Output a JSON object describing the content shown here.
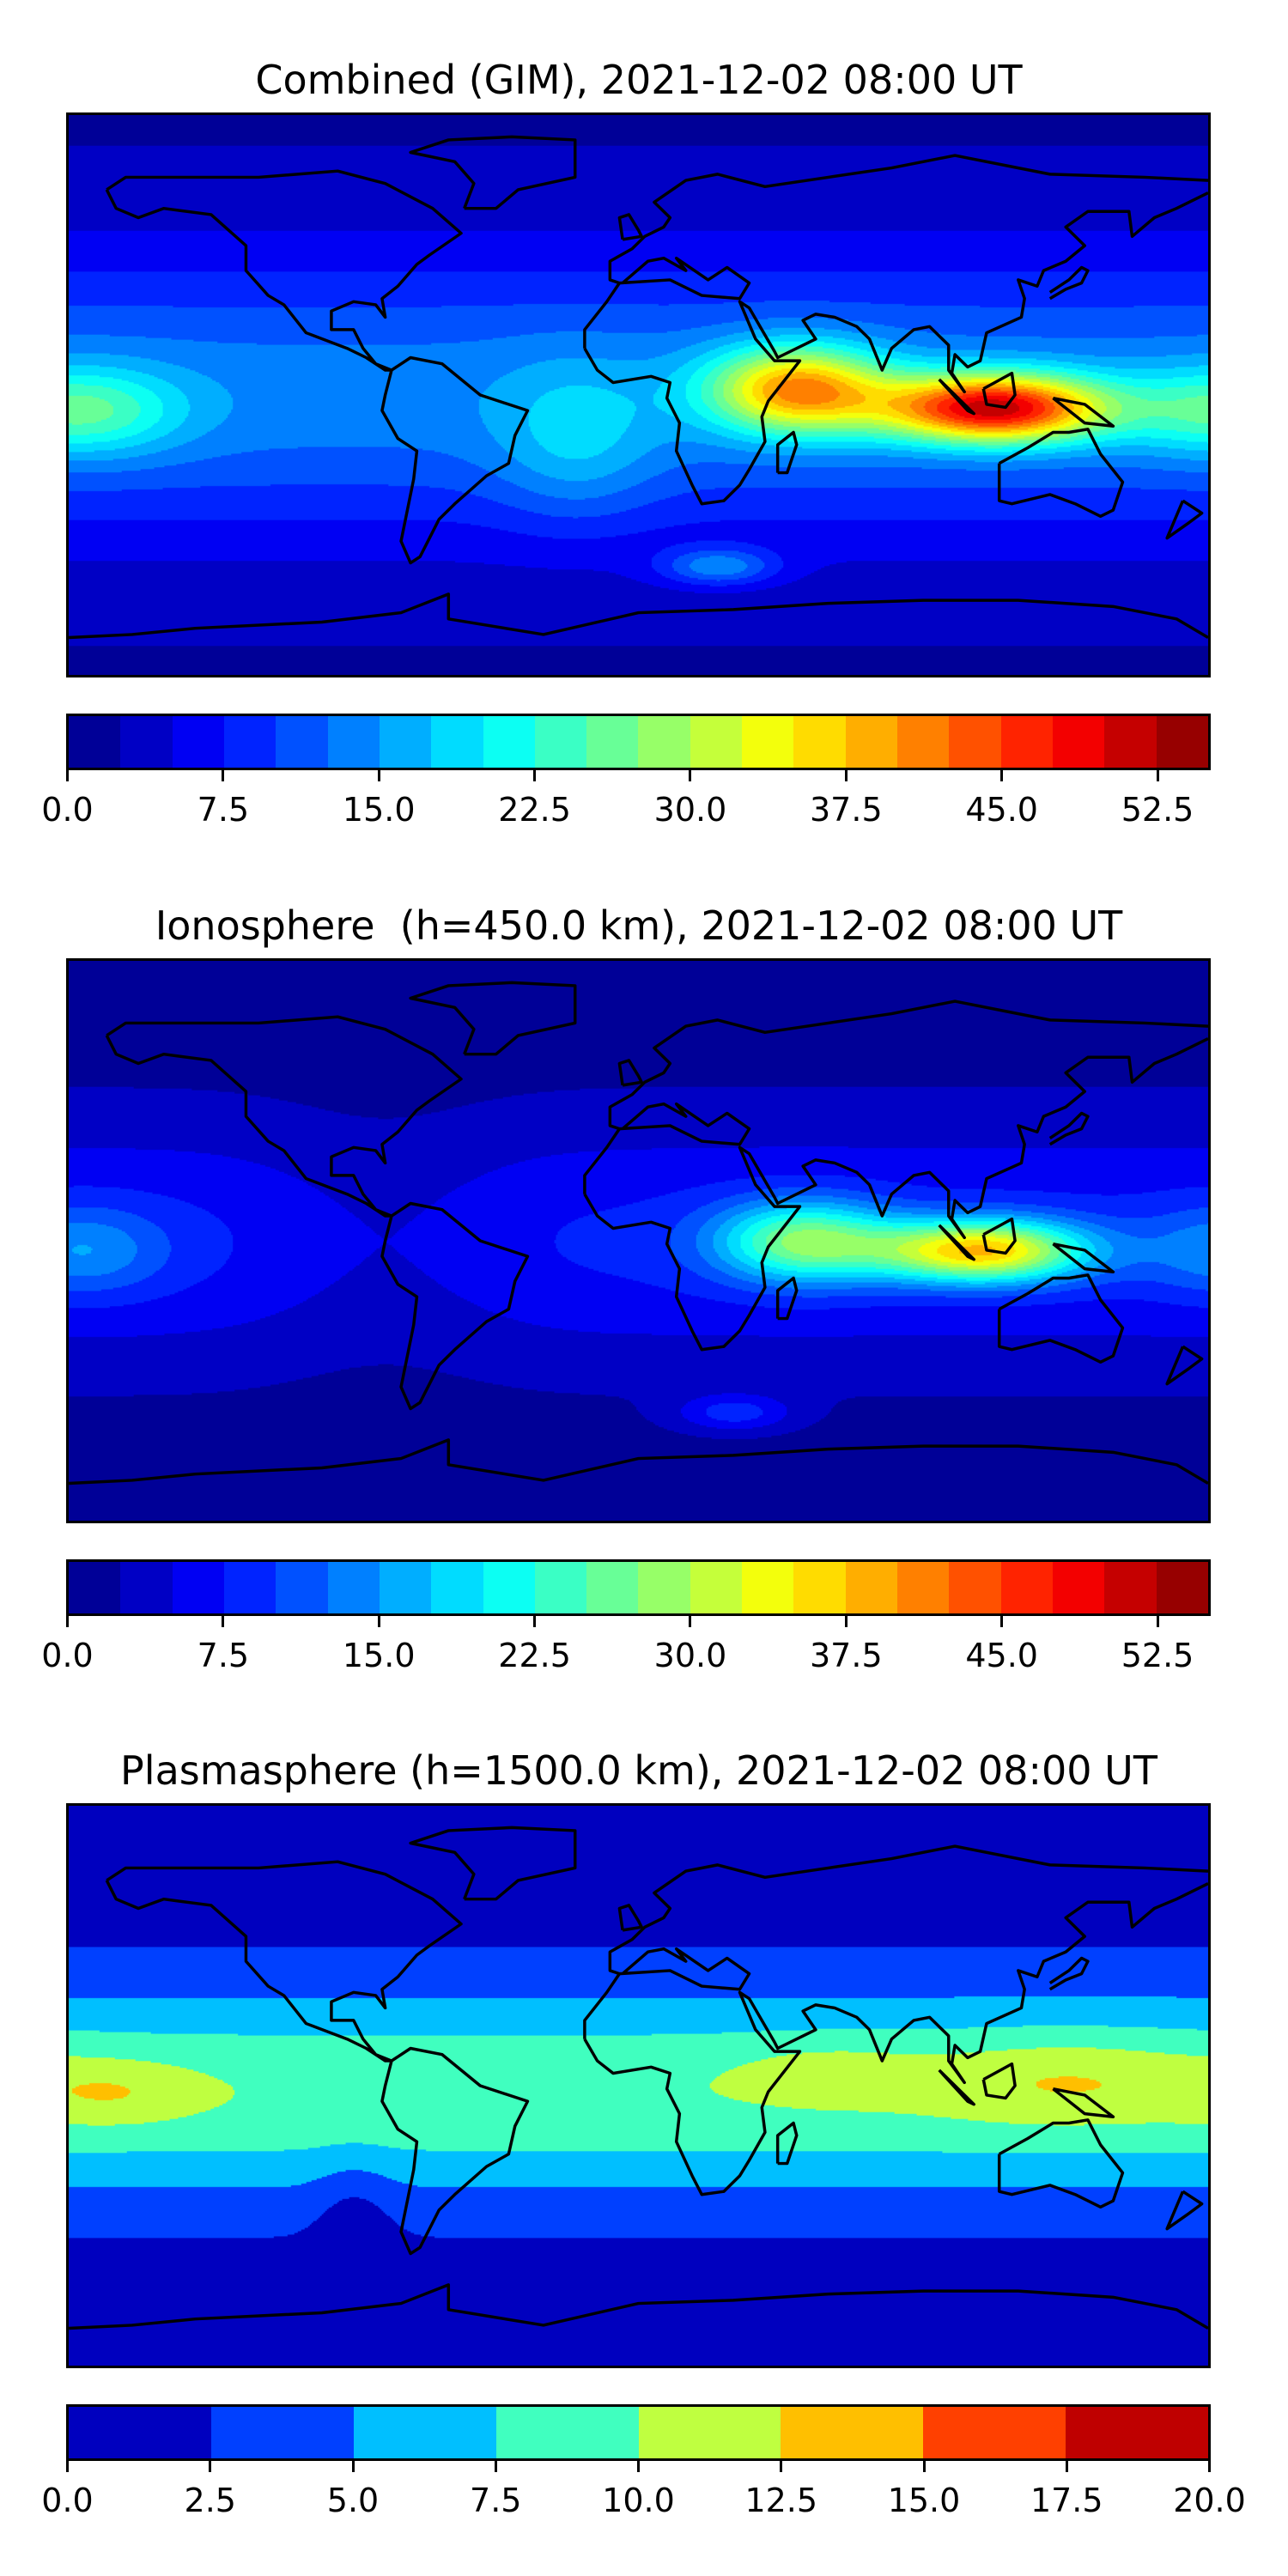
{
  "panels": [
    {
      "id": "combined",
      "title": "Combined (GIM), 2021-12-02 08:00 UT",
      "colorbar": {
        "vmin": 0,
        "vmax": 55,
        "step": 2.5,
        "ticks": [
          "0.0",
          "7.5",
          "15.0",
          "22.5",
          "30.0",
          "37.5",
          "45.0",
          "52.5"
        ],
        "tick_values": [
          0,
          7.5,
          15,
          22.5,
          30,
          37.5,
          45,
          52.5
        ]
      }
    },
    {
      "id": "ionosphere",
      "title": "Ionosphere  (h=450.0 km), 2021-12-02 08:00 UT",
      "colorbar": {
        "vmin": 0,
        "vmax": 55,
        "step": 2.5,
        "ticks": [
          "0.0",
          "7.5",
          "15.0",
          "22.5",
          "30.0",
          "37.5",
          "45.0",
          "52.5"
        ],
        "tick_values": [
          0,
          7.5,
          15,
          22.5,
          30,
          37.5,
          45,
          52.5
        ]
      }
    },
    {
      "id": "plasmasphere",
      "title": "Plasmasphere (h=1500.0 km), 2021-12-02 08:00 UT",
      "colorbar": {
        "vmin": 0,
        "vmax": 20,
        "step": 2.5,
        "ticks": [
          "0.0",
          "2.5",
          "5.0",
          "7.5",
          "10.0",
          "12.5",
          "15.0",
          "17.5",
          "20.0"
        ],
        "tick_values": [
          0,
          2.5,
          5,
          7.5,
          10,
          12.5,
          15,
          17.5,
          20
        ]
      }
    }
  ],
  "chart_data": [
    {
      "type": "heatmap",
      "title": "Combined (GIM), 2021-12-02 08:00 UT",
      "colormap": "jet",
      "levels": [
        0,
        55,
        2.5
      ],
      "xlim": [
        -180,
        180
      ],
      "ylim": [
        -90,
        90
      ],
      "max_region": "Indonesia / Maritime Continent ~50",
      "colorbar_ticks": [
        0,
        7.5,
        15,
        22.5,
        30,
        37.5,
        45,
        52.5
      ]
    },
    {
      "type": "heatmap",
      "title": "Ionosphere  (h=450.0 km), 2021-12-02 08:00 UT",
      "colormap": "jet",
      "levels": [
        0,
        55,
        2.5
      ],
      "xlim": [
        -180,
        180
      ],
      "ylim": [
        -90,
        90
      ],
      "max_region": "Indonesia ~37",
      "colorbar_ticks": [
        0,
        7.5,
        15,
        22.5,
        30,
        37.5,
        45,
        52.5
      ]
    },
    {
      "type": "heatmap",
      "title": "Plasmasphere (h=1500.0 km), 2021-12-02 08:00 UT",
      "colormap": "jet",
      "levels": [
        0,
        20,
        2.5
      ],
      "xlim": [
        -180,
        180
      ],
      "ylim": [
        -90,
        90
      ],
      "max_region": "western Pacific ~13",
      "colorbar_ticks": [
        0,
        2.5,
        5,
        7.5,
        10,
        12.5,
        15,
        17.5,
        20
      ]
    }
  ]
}
